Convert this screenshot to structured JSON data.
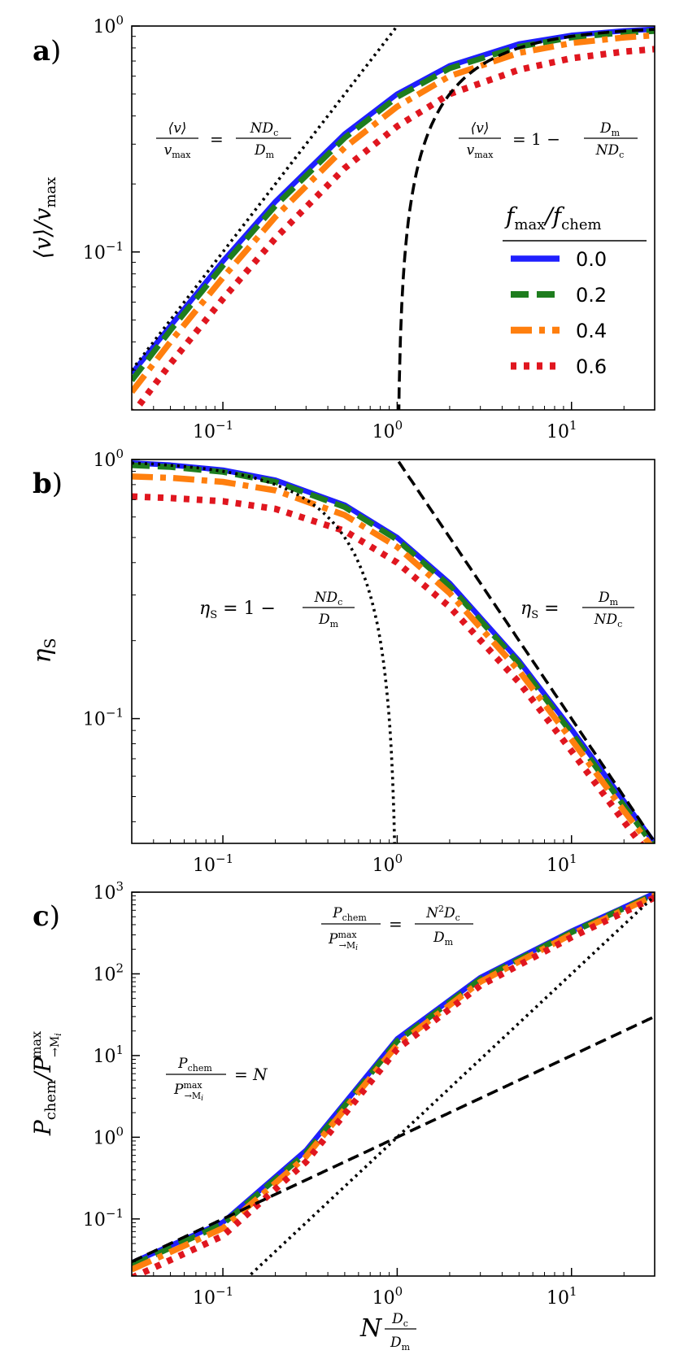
{
  "x_axis": {
    "label_text": "N D_c/D_m",
    "range": [
      0.03,
      30
    ],
    "ticks": [
      {
        "value": 0.1,
        "base": "10",
        "exp": "−1"
      },
      {
        "value": 1,
        "base": "10",
        "exp": "0"
      },
      {
        "value": 10,
        "base": "10",
        "exp": "1"
      }
    ]
  },
  "legend": {
    "title": "f_max/f_chem",
    "entries": [
      {
        "label": "0.0",
        "color": "#1f1fff",
        "style": "solid"
      },
      {
        "label": "0.2",
        "color": "#1e7d1e",
        "style": "dashed"
      },
      {
        "label": "0.4",
        "color": "#ff7f0e",
        "style": "dashdot"
      },
      {
        "label": "0.6",
        "color": "#e0161f",
        "style": "dotted"
      }
    ]
  },
  "chart_data": [
    {
      "panel_label": "a",
      "type": "line",
      "xscale": "log",
      "yscale": "log",
      "xlim": [
        0.03,
        30
      ],
      "ylim": [
        0.02,
        1
      ],
      "ylabel": "⟨v⟩/v_max",
      "yticks": [
        {
          "value": 1,
          "exp": "0"
        },
        {
          "value": 0.1,
          "exp": "−1"
        }
      ],
      "series": [
        {
          "name": "0.0",
          "points": [
            [
              0.03,
              0.029
            ],
            [
              0.05,
              0.047
            ],
            [
              0.1,
              0.091
            ],
            [
              0.2,
              0.167
            ],
            [
              0.5,
              0.333
            ],
            [
              1,
              0.5
            ],
            [
              2,
              0.667
            ],
            [
              5,
              0.833
            ],
            [
              10,
              0.91
            ],
            [
              20,
              0.952
            ],
            [
              30,
              0.968
            ]
          ]
        },
        {
          "name": "0.2",
          "points": [
            [
              0.03,
              0.027
            ],
            [
              0.05,
              0.045
            ],
            [
              0.1,
              0.087
            ],
            [
              0.2,
              0.16
            ],
            [
              0.5,
              0.32
            ],
            [
              1,
              0.485
            ],
            [
              2,
              0.65
            ],
            [
              5,
              0.81
            ],
            [
              10,
              0.89
            ],
            [
              20,
              0.935
            ],
            [
              30,
              0.95
            ]
          ]
        },
        {
          "name": "0.4",
          "points": [
            [
              0.03,
              0.024
            ],
            [
              0.05,
              0.04
            ],
            [
              0.1,
              0.077
            ],
            [
              0.2,
              0.143
            ],
            [
              0.5,
              0.29
            ],
            [
              1,
              0.44
            ],
            [
              2,
              0.6
            ],
            [
              5,
              0.76
            ],
            [
              10,
              0.84
            ],
            [
              20,
              0.89
            ],
            [
              30,
              0.91
            ]
          ]
        },
        {
          "name": "0.6",
          "points": [
            [
              0.03,
              0.019
            ],
            [
              0.05,
              0.032
            ],
            [
              0.1,
              0.062
            ],
            [
              0.2,
              0.115
            ],
            [
              0.5,
              0.235
            ],
            [
              1,
              0.36
            ],
            [
              2,
              0.5
            ],
            [
              5,
              0.64
            ],
            [
              10,
              0.72
            ],
            [
              20,
              0.77
            ],
            [
              30,
              0.79
            ]
          ]
        }
      ],
      "asymptotes": [
        {
          "kind": "dotted",
          "formula": "N D_c/D_m",
          "label_lhs": "⟨v⟩/v_max",
          "label_rhs": "N D_c/D_m"
        },
        {
          "kind": "dashed",
          "formula": "1 − D_m/(N D_c)",
          "label_lhs": "⟨v⟩/v_max",
          "label_rhs": "1 − D_m/(N D_c)"
        }
      ]
    },
    {
      "panel_label": "b",
      "type": "line",
      "xscale": "log",
      "yscale": "log",
      "xlim": [
        0.03,
        30
      ],
      "ylim": [
        0.033,
        1
      ],
      "ylabel": "η_S",
      "yticks": [
        {
          "value": 1,
          "exp": "0"
        },
        {
          "value": 0.1,
          "exp": "−1"
        }
      ],
      "series": [
        {
          "name": "0.0",
          "points": [
            [
              0.03,
              0.97
            ],
            [
              0.05,
              0.952
            ],
            [
              0.1,
              0.91
            ],
            [
              0.2,
              0.833
            ],
            [
              0.5,
              0.667
            ],
            [
              1,
              0.5
            ],
            [
              2,
              0.333
            ],
            [
              5,
              0.167
            ],
            [
              10,
              0.091
            ],
            [
              20,
              0.048
            ],
            [
              30,
              0.033
            ]
          ]
        },
        {
          "name": "0.2",
          "points": [
            [
              0.03,
              0.95
            ],
            [
              0.05,
              0.935
            ],
            [
              0.1,
              0.895
            ],
            [
              0.2,
              0.82
            ],
            [
              0.5,
              0.655
            ],
            [
              1,
              0.49
            ],
            [
              2,
              0.325
            ],
            [
              5,
              0.163
            ],
            [
              10,
              0.088
            ],
            [
              20,
              0.046
            ],
            [
              30,
              0.032
            ]
          ]
        },
        {
          "name": "0.4",
          "points": [
            [
              0.03,
              0.86
            ],
            [
              0.05,
              0.85
            ],
            [
              0.1,
              0.82
            ],
            [
              0.2,
              0.76
            ],
            [
              0.5,
              0.61
            ],
            [
              1,
              0.46
            ],
            [
              2,
              0.305
            ],
            [
              5,
              0.153
            ],
            [
              10,
              0.083
            ],
            [
              20,
              0.044
            ],
            [
              30,
              0.031
            ]
          ]
        },
        {
          "name": "0.6",
          "points": [
            [
              0.03,
              0.72
            ],
            [
              0.05,
              0.71
            ],
            [
              0.1,
              0.69
            ],
            [
              0.2,
              0.645
            ],
            [
              0.5,
              0.53
            ],
            [
              1,
              0.4
            ],
            [
              2,
              0.27
            ],
            [
              5,
              0.138
            ],
            [
              10,
              0.075
            ],
            [
              20,
              0.04
            ],
            [
              30,
              0.028
            ]
          ]
        }
      ],
      "asymptotes": [
        {
          "kind": "dotted",
          "formula": "1 − N D_c/D_m",
          "label_lhs": "η_S",
          "label_rhs": "1 − N D_c/D_m"
        },
        {
          "kind": "dashed",
          "formula": "D_m/(N D_c)",
          "label_lhs": "η_S",
          "label_rhs": "D_m/(N D_c)"
        }
      ]
    },
    {
      "panel_label": "c",
      "type": "line",
      "xscale": "log",
      "yscale": "log",
      "xlim": [
        0.03,
        30
      ],
      "ylim": [
        0.02,
        1000
      ],
      "ylabel": "P_chem/P^max_→M_i",
      "yticks": [
        {
          "value": 1000,
          "exp": "3"
        },
        {
          "value": 100,
          "exp": "2"
        },
        {
          "value": 10,
          "exp": "1"
        },
        {
          "value": 1,
          "exp": "0"
        },
        {
          "value": 0.1,
          "exp": "−1"
        }
      ],
      "series": [
        {
          "name": "0.0",
          "points": [
            [
              0.03,
              0.029
            ],
            [
              0.1,
              0.091
            ],
            [
              0.3,
              0.69
            ],
            [
              1,
              16
            ],
            [
              3,
              90
            ],
            [
              10,
              333
            ],
            [
              30,
              968
            ]
          ]
        },
        {
          "name": "0.2",
          "points": [
            [
              0.03,
              0.027
            ],
            [
              0.1,
              0.087
            ],
            [
              0.3,
              0.64
            ],
            [
              1,
              15
            ],
            [
              3,
              86
            ],
            [
              10,
              322
            ],
            [
              30,
              945
            ]
          ]
        },
        {
          "name": "0.4",
          "points": [
            [
              0.03,
              0.024
            ],
            [
              0.1,
              0.077
            ],
            [
              0.3,
              0.58
            ],
            [
              1,
              13.5
            ],
            [
              3,
              80
            ],
            [
              10,
              305
            ],
            [
              30,
              910
            ]
          ]
        },
        {
          "name": "0.6",
          "points": [
            [
              0.03,
              0.019
            ],
            [
              0.1,
              0.062
            ],
            [
              0.3,
              0.5
            ],
            [
              1,
              12
            ],
            [
              3,
              72
            ],
            [
              10,
              280
            ],
            [
              30,
              860
            ]
          ]
        }
      ],
      "asymptotes": [
        {
          "kind": "dotted",
          "formula": "N² D_c/D_m",
          "label_lhs": "P_chem/P^max_→M_i",
          "label_rhs": "N² D_c/D_m"
        },
        {
          "kind": "dashed",
          "formula": "N",
          "label_lhs": "P_chem/P^max_→M_i",
          "label_rhs": "N"
        }
      ]
    }
  ]
}
